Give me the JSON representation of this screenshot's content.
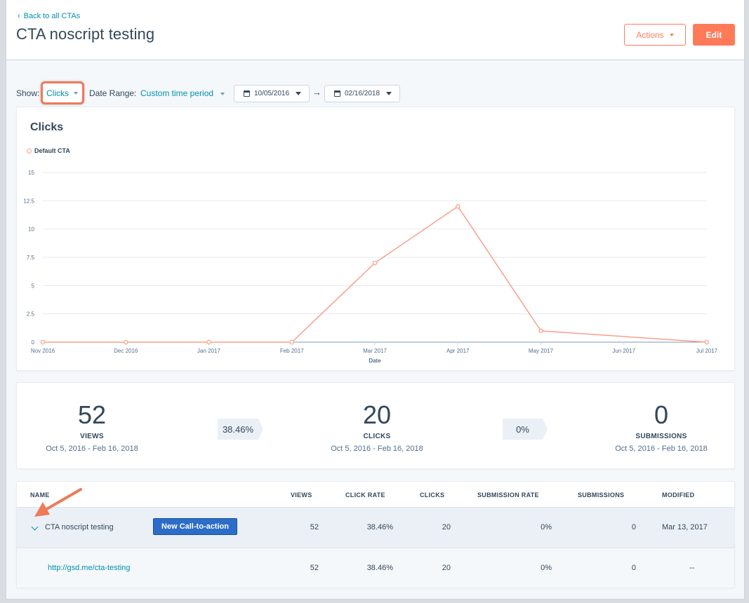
{
  "header": {
    "back_label": "Back to all CTAs",
    "title": "CTA noscript testing",
    "actions_label": "Actions",
    "edit_label": "Edit"
  },
  "filters": {
    "show_label": "Show:",
    "show_value": "Clicks",
    "date_range_label": "Date Range:",
    "date_range_value": "Custom time period",
    "date_from": "10/05/2016",
    "date_to": "02/16/2018"
  },
  "chart": {
    "title": "Clicks",
    "legend": "Default CTA"
  },
  "chart_data": {
    "type": "line",
    "title": "Clicks",
    "xlabel": "Date",
    "ylabel": "",
    "x": [
      "Nov 2016",
      "Dec 2016",
      "Jan 2017",
      "Feb 2017",
      "Mar 2017",
      "Apr 2017",
      "May 2017",
      "Jun 2017",
      "Jul 2017"
    ],
    "yticks": [
      "0",
      "2.5",
      "5",
      "7.5",
      "10",
      "12.5",
      "15"
    ],
    "ylim": [
      0,
      15
    ],
    "series": [
      {
        "name": "Default CTA",
        "color": "#f8a08a",
        "points": [
          {
            "x": "Nov 2016",
            "y": 0
          },
          {
            "x": "Dec 2016",
            "y": 0
          },
          {
            "x": "Jan 2017",
            "y": 0
          },
          {
            "x": "Feb 2017",
            "y": 0
          },
          {
            "x": "Mar 2017",
            "y": 7
          },
          {
            "x": "Apr 2017",
            "y": 12
          },
          {
            "x": "May 2017",
            "y": 1
          },
          {
            "x": "Jul 2017",
            "y": 0
          }
        ]
      }
    ],
    "grid": true,
    "legend_position": "top-left"
  },
  "stats": {
    "views": {
      "value": "52",
      "label": "VIEWS",
      "range": "Oct 5, 2016 - Feb 16, 2018"
    },
    "click_rate": "38.46%",
    "clicks": {
      "value": "20",
      "label": "CLICKS",
      "range": "Oct 5, 2016 - Feb 16, 2018"
    },
    "submission_rate": "0%",
    "submissions": {
      "value": "0",
      "label": "SUBMISSIONS",
      "range": "Oct 5, 2016 - Feb 16, 2018"
    }
  },
  "table": {
    "headers": {
      "name": "NAME",
      "views": "VIEWS",
      "click_rate": "CLICK RATE",
      "clicks": "CLICKS",
      "submission_rate": "SUBMISSION RATE",
      "submissions": "SUBMISSIONS",
      "modified": "MODIFIED"
    },
    "main_row": {
      "name": "CTA noscript testing",
      "button_label": "New Call-to-action",
      "views": "52",
      "click_rate": "38.46%",
      "clicks": "20",
      "submission_rate": "0%",
      "submissions": "0",
      "modified": "Mar 13, 2017"
    },
    "sub_row": {
      "url": "http://gsd.me/cta-testing",
      "views": "52",
      "click_rate": "38.46%",
      "clicks": "20",
      "submission_rate": "0%",
      "submissions": "0",
      "modified": "--"
    }
  },
  "colors": {
    "accent": "#ff7a59",
    "link": "#0091ae",
    "button_blue": "#2c6dc9",
    "annotation": "#ee7a59"
  }
}
